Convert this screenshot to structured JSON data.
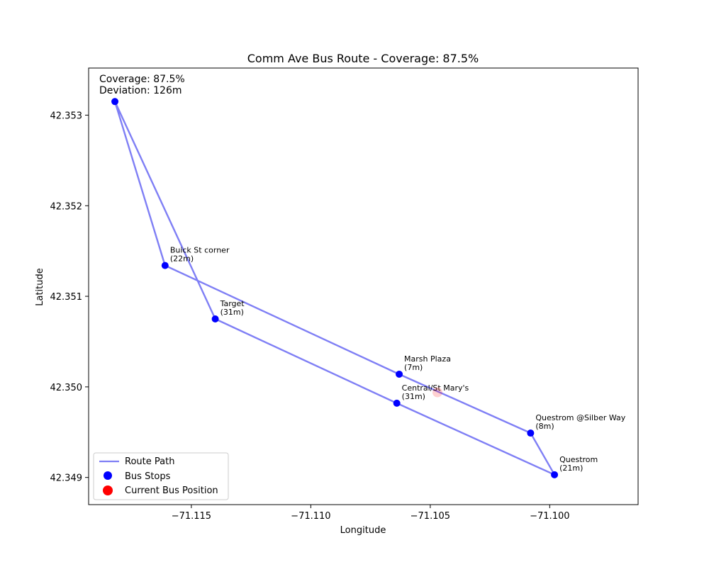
{
  "chart_data": {
    "type": "scatter",
    "title": "Comm Ave Bus Route - Coverage: 87.5%",
    "xlabel": "Longitude",
    "ylabel": "Latitude",
    "xlim": [
      -71.1193,
      -71.0963
    ],
    "ylim": [
      42.3487,
      42.35352
    ],
    "x_ticks": [
      -71.115,
      -71.11,
      -71.105,
      -71.1
    ],
    "x_tick_labels": [
      "−71.115",
      "−71.110",
      "−71.105",
      "−71.100"
    ],
    "y_ticks": [
      42.349,
      42.35,
      42.351,
      42.352,
      42.353
    ],
    "y_tick_labels": [
      "42.349",
      "42.350",
      "42.351",
      "42.352",
      "42.353"
    ],
    "grid": false,
    "info_lines": [
      "Coverage: 87.5%",
      "Deviation: 126m"
    ],
    "series": [
      {
        "name": "Route Path",
        "type": "line",
        "color": "#7f7ff5",
        "points": [
          [
            -71.1182,
            42.35315
          ],
          [
            -71.1161,
            42.35134
          ],
          [
            -71.1063,
            42.35014
          ],
          [
            -71.1008,
            42.34949
          ],
          [
            -71.0998,
            42.34903
          ],
          [
            -71.1064,
            42.34982
          ],
          [
            -71.114,
            42.35075
          ],
          [
            -71.1182,
            42.35315
          ]
        ]
      },
      {
        "name": "Bus Stops",
        "type": "scatter",
        "color": "#0000ff",
        "points": [
          {
            "x": -71.1182,
            "y": 42.35315,
            "label": "",
            "distance": ""
          },
          {
            "x": -71.1161,
            "y": 42.35134,
            "label": "Buick St corner",
            "distance": "(22m)"
          },
          {
            "x": -71.114,
            "y": 42.35075,
            "label": "Target",
            "distance": "(31m)"
          },
          {
            "x": -71.1063,
            "y": 42.35014,
            "label": "Marsh Plaza",
            "distance": "(7m)"
          },
          {
            "x": -71.1064,
            "y": 42.34982,
            "label": "Central/St Mary's",
            "distance": "(31m)"
          },
          {
            "x": -71.1008,
            "y": 42.34949,
            "label": "Questrom @Silber Way",
            "distance": "(8m)"
          },
          {
            "x": -71.0998,
            "y": 42.34903,
            "label": "Questrom",
            "distance": "(21m)"
          }
        ]
      },
      {
        "name": "Current Bus Position",
        "type": "scatter",
        "color": "#ff0000",
        "points": [
          {
            "x": -71.1047,
            "y": 42.34994
          }
        ]
      }
    ],
    "legend": {
      "position": "lower-left",
      "entries": [
        {
          "label": "Route Path",
          "color": "#7f7ff5",
          "marker": "line"
        },
        {
          "label": "Bus Stops",
          "color": "#0000ff",
          "marker": "dot"
        },
        {
          "label": "Current Bus Position",
          "color": "#ff0000",
          "marker": "dot"
        }
      ]
    }
  }
}
